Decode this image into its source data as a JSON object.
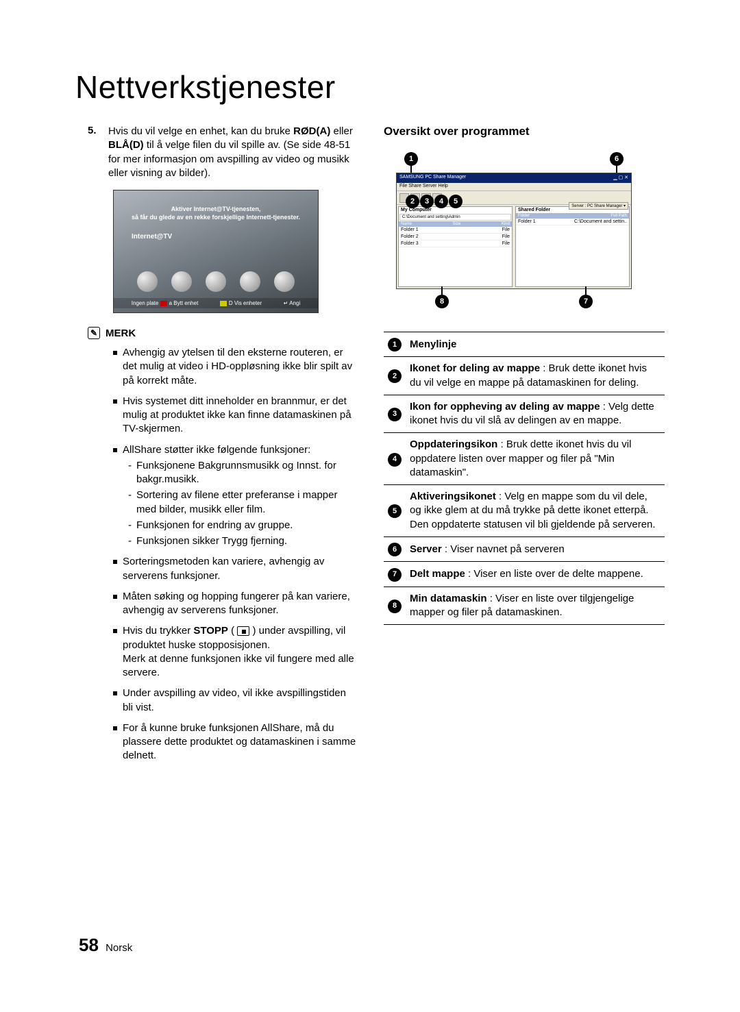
{
  "title": "Nettverkstjenester",
  "step": {
    "num": "5.",
    "text_before": "Hvis du vil velge en enhet, kan du bruke ",
    "red": "RØD(A)",
    "mid": " eller ",
    "blue": "BLÅ(D)",
    "after": " til å velge filen du vil spille av. (Se side 48-51 for mer informasjon om avspilling av video og musikk eller visning av bilder)."
  },
  "tv": {
    "top1": "Aktiver Internet@TV-tjenesten,",
    "top2": "så får du glede av en rekke forskjellige Internett-tjenester.",
    "mid": "Internet@TV",
    "b1_label": "Ingen plate",
    "b1a": "a Bytt enhet",
    "b2": "D Vis enheter",
    "b3": "↵ Angi"
  },
  "merk_label": "MERK",
  "merk_icon": "✎",
  "notes": [
    {
      "text": "Avhengig av ytelsen til den eksterne routeren, er det mulig at video i HD-oppløsning ikke blir spilt av på korrekt måte."
    },
    {
      "text": "Hvis systemet ditt inneholder en brannmur, er det mulig at produktet ikke kan finne datamaskinen på TV-skjermen."
    },
    {
      "text": "AllShare støtter ikke følgende funksjoner:",
      "sub": [
        "Funksjonene Bakgrunnsmusikk og Innst. for bakgr.musikk.",
        "Sortering av filene etter preferanse i mapper med bilder, musikk eller film.",
        "Funksjonen for endring av gruppe.",
        "Funksjonen sikker Trygg fjerning."
      ]
    },
    {
      "text": "Sorteringsmetoden kan variere, avhengig av serverens funksjoner."
    },
    {
      "text": "Måten søking og hopping fungerer på kan variere, avhengig av serverens funksjoner."
    },
    {
      "html": true,
      "pre": "Hvis du trykker ",
      "bold": "STOPP",
      "post_icon": " ( ",
      "post": " ) under avspilling, vil produktet huske stopposisjonen.\nMerk at denne funksjonen ikke vil fungere med alle servere."
    },
    {
      "text": "Under avspilling av video, vil ikke avspillingstiden bli vist."
    },
    {
      "text": "For å kunne bruke funksjonen AllShare, må du plassere dette produktet og datamaskinen i samme delnett."
    }
  ],
  "right_heading": "Oversikt over programmet",
  "app": {
    "title": "SAMSUNG PC Share Manager",
    "menu": "File   Share   Server   Help",
    "srv": "Server : PC Share Manager ▾",
    "left_label": "My Computer",
    "left_path": "C:\\Document and setting\\Admin",
    "left_cols": {
      "c1": "Name",
      "c2": "Size",
      "c3": "Kind"
    },
    "left_rows": [
      {
        "n": "Folder 1",
        "k": "File"
      },
      {
        "n": "Folder 2",
        "k": "File"
      },
      {
        "n": "Folder 3",
        "k": "File"
      }
    ],
    "right_label": "Shared Folder",
    "right_cols": {
      "c1": "Folder",
      "c2": "Full Path"
    },
    "right_rows": [
      {
        "n": "Folder 1",
        "p": "C:\\Document and settin.."
      }
    ]
  },
  "legend": [
    {
      "n": "1",
      "bold": "Menylinje",
      "text": ""
    },
    {
      "n": "2",
      "bold": "Ikonet for deling av mappe",
      "text": " : Bruk dette ikonet hvis du vil velge en mappe på datamaskinen for deling."
    },
    {
      "n": "3",
      "bold": "Ikon for oppheving av deling av mappe",
      "text": " : Velg dette ikonet hvis du vil slå av delingen av en mappe."
    },
    {
      "n": "4",
      "bold": "Oppdateringsikon",
      "text": " : Bruk dette ikonet hvis du vil oppdatere listen over mapper og filer på \"Min datamaskin\"."
    },
    {
      "n": "5",
      "bold": "Aktiveringsikonet",
      "text": " : Velg en mappe som du vil dele, og ikke glem at du må trykke på dette ikonet etterpå.\nDen oppdaterte statusen vil bli gjeldende på serveren."
    },
    {
      "n": "6",
      "bold": "Server",
      "text": " : Viser navnet på serveren"
    },
    {
      "n": "7",
      "bold": "Delt mappe",
      "text": " : Viser en liste over de delte mappene."
    },
    {
      "n": "8",
      "bold": "Min datamaskin",
      "text": " : Viser en liste over tilgjengelige mapper og filer på datamaskinen."
    }
  ],
  "footer": {
    "page": "58",
    "lang": "Norsk"
  }
}
